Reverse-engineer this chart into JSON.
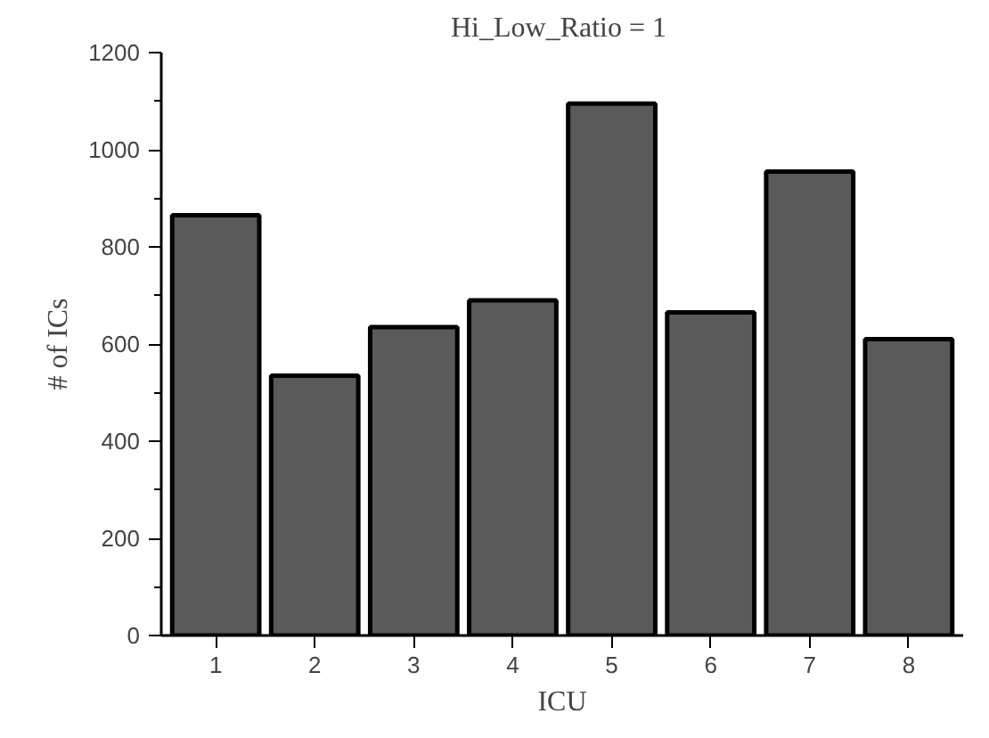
{
  "chart_data": {
    "type": "bar",
    "title": "Hi_Low_Ratio  = 1",
    "xlabel": "ICU",
    "ylabel": "# of ICs",
    "categories": [
      "1",
      "2",
      "3",
      "4",
      "5",
      "6",
      "7",
      "8"
    ],
    "values": [
      865,
      535,
      635,
      690,
      1095,
      665,
      955,
      610
    ],
    "color": "#5a5a5a",
    "ylim": [
      0,
      1200
    ],
    "yticks": [
      0,
      200,
      400,
      600,
      800,
      1000,
      1200
    ],
    "grid": false
  }
}
